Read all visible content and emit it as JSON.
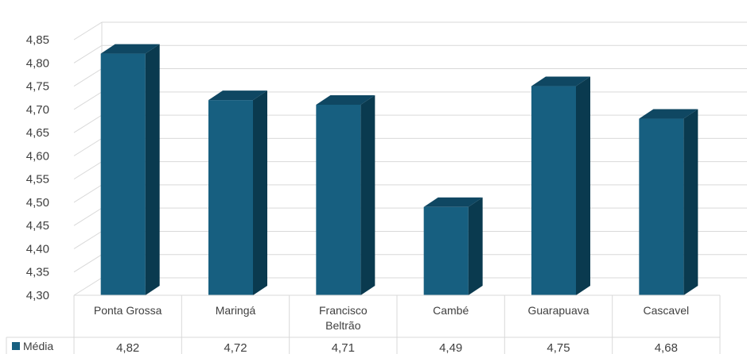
{
  "chart_data": {
    "type": "bar",
    "categories": [
      "Ponta Grossa",
      "Maringá",
      "Francisco Beltrão",
      "Cambé",
      "Guarapuava",
      "Cascavel"
    ],
    "series": [
      {
        "name": "Média",
        "values": [
          4.82,
          4.72,
          4.71,
          4.49,
          4.75,
          4.68
        ]
      }
    ],
    "value_labels": [
      "4,82",
      "4,72",
      "4,71",
      "4,49",
      "4,75",
      "4,68"
    ],
    "ylim": [
      4.3,
      4.85
    ],
    "y_ticks": [
      "4,30",
      "4,35",
      "4,40",
      "4,45",
      "4,50",
      "4,55",
      "4,60",
      "4,65",
      "4,70",
      "4,75",
      "4,80",
      "4,85"
    ],
    "grid": true,
    "style": "3d-column",
    "legend_placement": "data-table",
    "colors": {
      "front": "#175f80",
      "top": "#0f4762",
      "side": "#0a3a4f",
      "grid": "#d9d9d9",
      "text": "#404040"
    }
  }
}
